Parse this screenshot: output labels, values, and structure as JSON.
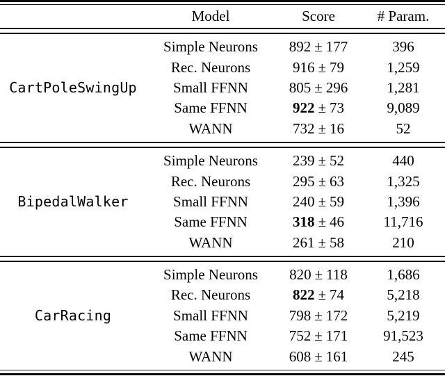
{
  "table": {
    "plus_minus": "±",
    "header": {
      "model": "Model",
      "score": "Score",
      "params": "# Param."
    },
    "sections": [
      {
        "env": "CartPoleSwingUp",
        "rows": [
          {
            "model": "Simple Neurons",
            "mean": "892",
            "err": "177",
            "bold": false,
            "params": "396"
          },
          {
            "model": "Rec. Neurons",
            "mean": "916",
            "err": "79",
            "bold": false,
            "params": "1,259"
          },
          {
            "model": "Small FFNN",
            "mean": "805",
            "err": "296",
            "bold": false,
            "params": "1,281"
          },
          {
            "model": "Same FFNN",
            "mean": "922",
            "err": "73",
            "bold": true,
            "params": "9,089"
          },
          {
            "model": "WANN",
            "mean": "732",
            "err": "16",
            "bold": false,
            "params": "52"
          }
        ]
      },
      {
        "env": "BipedalWalker",
        "rows": [
          {
            "model": "Simple Neurons",
            "mean": "239",
            "err": "52",
            "bold": false,
            "params": "440"
          },
          {
            "model": "Rec. Neurons",
            "mean": "295",
            "err": "63",
            "bold": false,
            "params": "1,325"
          },
          {
            "model": "Small FFNN",
            "mean": "240",
            "err": "59",
            "bold": false,
            "params": "1,396"
          },
          {
            "model": "Same FFNN",
            "mean": "318",
            "err": "46",
            "bold": true,
            "params": "11,716"
          },
          {
            "model": "WANN",
            "mean": "261",
            "err": "58",
            "bold": false,
            "params": "210"
          }
        ]
      },
      {
        "env": "CarRacing",
        "rows": [
          {
            "model": "Simple Neurons",
            "mean": "820",
            "err": "118",
            "bold": false,
            "params": "1,686"
          },
          {
            "model": "Rec. Neurons",
            "mean": "822",
            "err": "74",
            "bold": true,
            "params": "5,218"
          },
          {
            "model": "Small FFNN",
            "mean": "798",
            "err": "172",
            "bold": false,
            "params": "5,219"
          },
          {
            "model": "Same FFNN",
            "mean": "752",
            "err": "171",
            "bold": false,
            "params": "91,523"
          },
          {
            "model": "WANN",
            "mean": "608",
            "err": "161",
            "bold": false,
            "params": "245"
          }
        ]
      }
    ]
  }
}
